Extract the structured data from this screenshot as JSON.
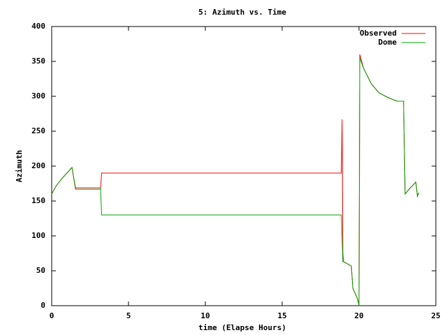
{
  "chart_data": {
    "type": "line",
    "title": "5: Azimuth vs. Time",
    "x_label": "time (Elapse Hours)",
    "y_label": "Azimuth",
    "xlim": [
      0,
      25
    ],
    "xticks": [
      0,
      5,
      10,
      15,
      20,
      25
    ],
    "ylim": [
      0,
      400
    ],
    "yticks": [
      0,
      50,
      100,
      150,
      200,
      250,
      300,
      350,
      400
    ],
    "legend": "top-right",
    "series": [
      {
        "name": "Observed",
        "color": "#ff0000",
        "x": [
          0,
          0.3,
          0.7,
          1.32,
          1.55,
          3.18,
          3.25,
          18.85,
          18.9,
          18.95,
          19.0,
          19.5,
          19.6,
          19.9,
          20.0,
          20.05,
          20.3,
          20.8,
          21.3,
          21.9,
          22.5,
          22.9,
          23.0,
          23.3,
          23.7,
          23.8,
          23.9
        ],
        "values": [
          160,
          172,
          183,
          198,
          167,
          167,
          190,
          190,
          267,
          75,
          63,
          57,
          25,
          10,
          3,
          360,
          340,
          318,
          305,
          298,
          293,
          293,
          160,
          168,
          177,
          157,
          162
        ]
      },
      {
        "name": "Dome",
        "color": "#00a000",
        "x": [
          0,
          0.3,
          0.7,
          1.32,
          1.55,
          3.18,
          3.25,
          18.85,
          18.95,
          19.0,
          19.5,
          19.6,
          19.9,
          20.0,
          20.05,
          20.3,
          20.8,
          21.3,
          21.9,
          22.5,
          22.9,
          23.0,
          23.3,
          23.7,
          23.8,
          23.9
        ],
        "values": [
          160,
          172,
          183,
          198,
          169,
          169,
          130,
          130,
          63,
          63,
          57,
          25,
          10,
          0,
          355,
          340,
          318,
          305,
          298,
          293,
          293,
          160,
          168,
          177,
          157,
          162
        ]
      }
    ]
  }
}
